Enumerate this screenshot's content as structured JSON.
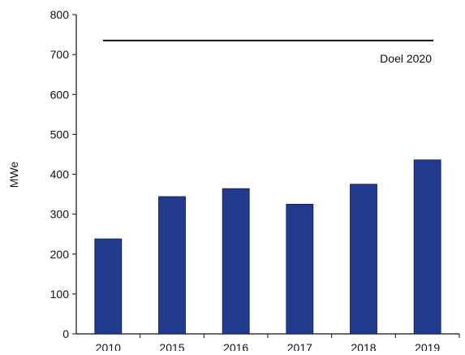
{
  "chart_data": {
    "type": "bar",
    "categories": [
      "2010",
      "2015",
      "2016",
      "2017",
      "2018",
      "2019"
    ],
    "values": [
      238,
      344,
      364,
      325,
      375,
      436
    ],
    "title": "",
    "xlabel": "",
    "ylabel": "MWe",
    "ylim": [
      0,
      800
    ],
    "yticks": [
      0,
      100,
      200,
      300,
      400,
      500,
      600,
      700,
      800
    ],
    "grid": false,
    "bar_color": "#233b8f",
    "reference_line": {
      "label": "Doel 2020",
      "value": 735,
      "color": "#111111"
    }
  }
}
